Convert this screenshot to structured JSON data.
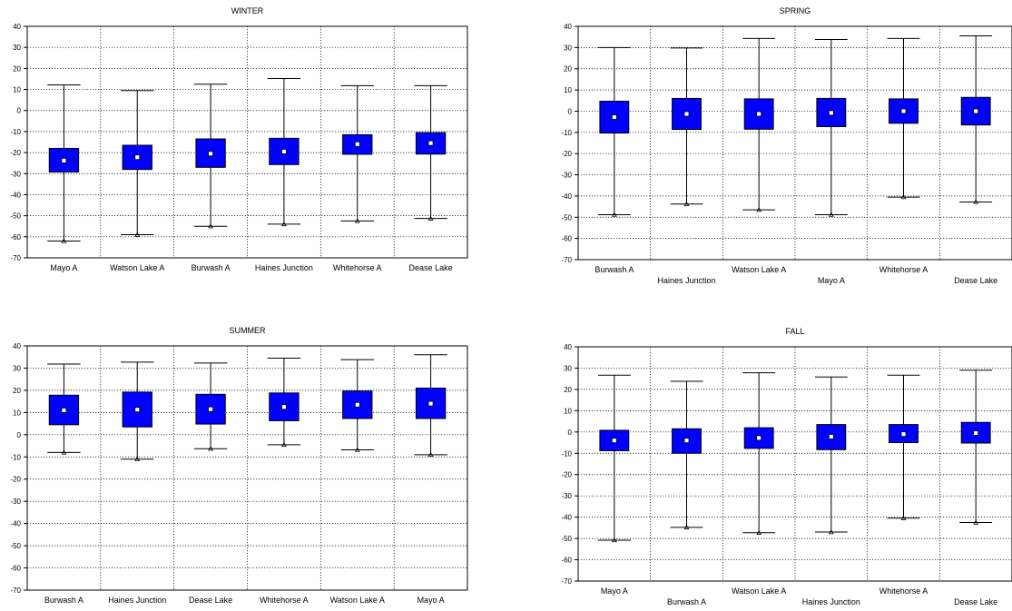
{
  "colors": {
    "box_fill": "#0000ff",
    "frame": "#000000",
    "grid": "#000000",
    "background": "#ffffff"
  },
  "chart_data": [
    {
      "type": "boxplot",
      "title": "WINTER",
      "ylim": [
        -70,
        40
      ],
      "yticks": [
        40,
        30,
        20,
        10,
        0,
        -10,
        -20,
        -30,
        -40,
        -50,
        -60,
        -70
      ],
      "grid": true,
      "staggered_labels": false,
      "categories": [
        "Mayo A",
        "Watson Lake A",
        "Burwash A",
        "Haines Junction",
        "Whitehorse A",
        "Dease Lake"
      ],
      "series": [
        {
          "mean": -23.8,
          "box_low": -29.2,
          "box_high": -18.0,
          "whisker_low": -62.0,
          "whisker_high": 12.2
        },
        {
          "mean": -22.2,
          "box_low": -28.0,
          "box_high": -16.5,
          "whisker_low": -59.0,
          "whisker_high": 9.5
        },
        {
          "mean": -20.5,
          "box_low": -27.0,
          "box_high": -13.5,
          "whisker_low": -55.0,
          "whisker_high": 12.5
        },
        {
          "mean": -19.5,
          "box_low": -25.7,
          "box_high": -13.2,
          "whisker_low": -54.0,
          "whisker_high": 15.2
        },
        {
          "mean": -16.0,
          "box_low": -20.8,
          "box_high": -11.5,
          "whisker_low": -52.5,
          "whisker_high": 11.8
        },
        {
          "mean": -15.5,
          "box_low": -20.7,
          "box_high": -10.5,
          "whisker_low": -51.3,
          "whisker_high": 11.8
        }
      ]
    },
    {
      "type": "boxplot",
      "title": "SPRING",
      "ylim": [
        -70,
        40
      ],
      "yticks": [
        40,
        30,
        20,
        10,
        0,
        -10,
        -20,
        -30,
        -40,
        -50,
        -60,
        -70
      ],
      "grid": true,
      "staggered_labels": true,
      "categories": [
        "Burwash A",
        "Haines Junction",
        "Watson Lake A",
        "Mayo A",
        "Whitehorse A",
        "Dease Lake"
      ],
      "series": [
        {
          "mean": -2.8,
          "box_low": -10.3,
          "box_high": 4.7,
          "whisker_low": -48.8,
          "whisker_high": 30.0
        },
        {
          "mean": -1.3,
          "box_low": -8.6,
          "box_high": 6.0,
          "whisker_low": -43.8,
          "whisker_high": 29.8
        },
        {
          "mean": -1.3,
          "box_low": -8.5,
          "box_high": 5.8,
          "whisker_low": -46.5,
          "whisker_high": 34.3
        },
        {
          "mean": -0.8,
          "box_low": -7.3,
          "box_high": 6.0,
          "whisker_low": -48.8,
          "whisker_high": 33.8
        },
        {
          "mean": 0.0,
          "box_low": -5.7,
          "box_high": 5.8,
          "whisker_low": -40.5,
          "whisker_high": 34.3
        },
        {
          "mean": 0.0,
          "box_low": -6.5,
          "box_high": 6.5,
          "whisker_low": -42.8,
          "whisker_high": 35.5
        }
      ]
    },
    {
      "type": "boxplot",
      "title": "SUMMER",
      "ylim": [
        -70,
        40
      ],
      "yticks": [
        40,
        30,
        20,
        10,
        0,
        -10,
        -20,
        -30,
        -40,
        -50,
        -60,
        -70
      ],
      "grid": true,
      "staggered_labels": false,
      "categories": [
        "Burwash A",
        "Haines Junction",
        "Dease Lake",
        "Whitehorse A",
        "Watson Lake A",
        "Mayo A"
      ],
      "series": [
        {
          "mean": 11.0,
          "box_low": 4.5,
          "box_high": 17.8,
          "whisker_low": -8.0,
          "whisker_high": 31.8
        },
        {
          "mean": 11.3,
          "box_low": 3.5,
          "box_high": 19.2,
          "whisker_low": -11.0,
          "whisker_high": 32.7
        },
        {
          "mean": 11.5,
          "box_low": 4.8,
          "box_high": 18.2,
          "whisker_low": -6.3,
          "whisker_high": 32.3
        },
        {
          "mean": 12.5,
          "box_low": 6.3,
          "box_high": 18.8,
          "whisker_low": -4.5,
          "whisker_high": 34.5
        },
        {
          "mean": 13.5,
          "box_low": 7.3,
          "box_high": 19.7,
          "whisker_low": -6.8,
          "whisker_high": 33.8
        },
        {
          "mean": 14.0,
          "box_low": 7.3,
          "box_high": 21.0,
          "whisker_low": -9.0,
          "whisker_high": 36.0
        }
      ]
    },
    {
      "type": "boxplot",
      "title": "FALL",
      "ylim": [
        -70,
        40
      ],
      "yticks": [
        40,
        30,
        20,
        10,
        0,
        -10,
        -20,
        -30,
        -40,
        -50,
        -60,
        -70
      ],
      "grid": true,
      "staggered_labels": true,
      "categories": [
        "Mayo A",
        "Burwash A",
        "Watson Lake A",
        "Haines Junction",
        "Whitehorse A",
        "Dease Lake"
      ],
      "series": [
        {
          "mean": -4.0,
          "box_low": -8.8,
          "box_high": 0.8,
          "whisker_low": -50.8,
          "whisker_high": 26.7
        },
        {
          "mean": -4.0,
          "box_low": -10.0,
          "box_high": 1.5,
          "whisker_low": -44.8,
          "whisker_high": 23.8
        },
        {
          "mean": -2.8,
          "box_low": -7.7,
          "box_high": 2.0,
          "whisker_low": -47.3,
          "whisker_high": 27.8
        },
        {
          "mean": -2.2,
          "box_low": -8.3,
          "box_high": 3.5,
          "whisker_low": -47.0,
          "whisker_high": 25.8
        },
        {
          "mean": -1.0,
          "box_low": -5.0,
          "box_high": 3.5,
          "whisker_low": -40.5,
          "whisker_high": 26.7
        },
        {
          "mean": -0.5,
          "box_low": -5.2,
          "box_high": 4.5,
          "whisker_low": -42.5,
          "whisker_high": 29.0
        }
      ]
    }
  ]
}
